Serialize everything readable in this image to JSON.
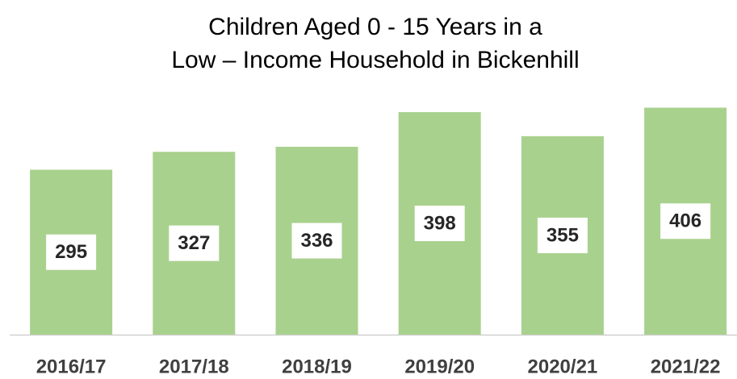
{
  "chart_data": {
    "type": "bar",
    "title": [
      "Children Aged  0 - 15  Years in  a",
      "Low – Income Household in  Bickenhill"
    ],
    "categories": [
      "2016/17",
      "2017/18",
      "2018/19",
      "2019/20",
      "2020/21",
      "2021/22"
    ],
    "values": [
      295,
      327,
      336,
      398,
      355,
      406
    ],
    "color": "#a9d18e",
    "ylim": [
      0,
      450
    ]
  }
}
